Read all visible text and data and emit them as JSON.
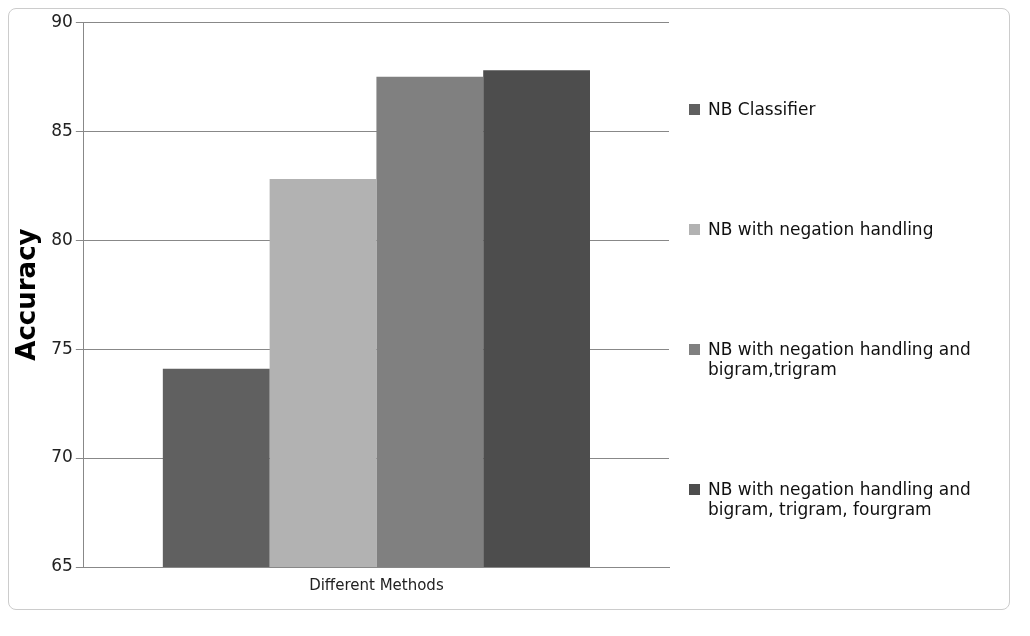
{
  "chart_data": {
    "type": "bar",
    "ylabel": "Accuracy",
    "categories": [
      "Different Methods"
    ],
    "series": [
      {
        "name": "NB Classifier",
        "color": "#606060",
        "values": [
          74.1
        ]
      },
      {
        "name": "NB with negation handling",
        "color": "#b2b2b2",
        "values": [
          82.8
        ]
      },
      {
        "name": "NB with negation handling and bigram,trigram",
        "color": "#808080",
        "values": [
          87.5
        ]
      },
      {
        "name": "NB with negation handling and bigram, trigram, fourgram",
        "color": "#4d4d4d",
        "values": [
          87.8
        ]
      }
    ],
    "ylim": [
      65,
      90
    ],
    "yticks": [
      65,
      70,
      75,
      80,
      85,
      90
    ],
    "grid": "y",
    "legend": "right"
  }
}
